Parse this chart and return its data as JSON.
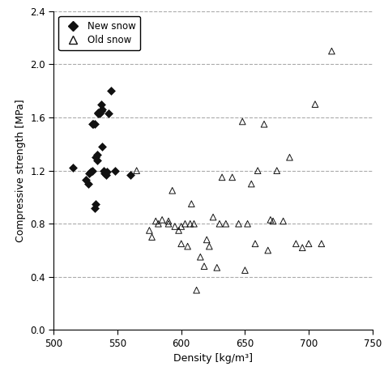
{
  "new_snow_x": [
    515,
    525,
    527,
    528,
    529,
    530,
    530,
    531,
    532,
    532,
    533,
    533,
    534,
    534,
    535,
    535,
    536,
    537,
    537,
    538,
    538,
    539,
    540,
    541,
    542,
    543,
    545,
    548,
    560
  ],
  "new_snow_y": [
    1.22,
    1.13,
    1.1,
    1.18,
    1.19,
    1.2,
    1.55,
    1.55,
    1.55,
    0.92,
    1.3,
    0.95,
    1.28,
    1.32,
    1.63,
    1.64,
    1.63,
    1.65,
    1.7,
    1.66,
    1.38,
    1.2,
    1.18,
    1.17,
    1.19,
    1.63,
    1.8,
    1.2,
    1.17
  ],
  "old_snow_x": [
    565,
    575,
    577,
    580,
    582,
    585,
    590,
    590,
    593,
    595,
    598,
    600,
    600,
    603,
    605,
    607,
    608,
    610,
    612,
    615,
    618,
    620,
    622,
    625,
    628,
    630,
    632,
    635,
    640,
    645,
    648,
    650,
    652,
    655,
    658,
    660,
    665,
    668,
    670,
    672,
    675,
    680,
    685,
    690,
    695,
    700,
    705,
    710,
    718
  ],
  "old_snow_y": [
    1.2,
    0.75,
    0.7,
    0.82,
    0.8,
    0.83,
    0.82,
    0.8,
    1.05,
    0.78,
    0.75,
    0.65,
    0.78,
    0.8,
    0.63,
    0.8,
    0.95,
    0.8,
    0.3,
    0.55,
    0.48,
    0.68,
    0.63,
    0.85,
    0.47,
    0.8,
    1.15,
    0.8,
    1.15,
    0.8,
    1.57,
    0.45,
    0.8,
    1.1,
    0.65,
    1.2,
    1.55,
    0.6,
    0.83,
    0.82,
    1.2,
    0.82,
    1.3,
    0.65,
    0.62,
    0.65,
    1.7,
    0.65,
    2.1
  ],
  "xlim": [
    500,
    750
  ],
  "ylim": [
    0,
    2.4
  ],
  "xlabel": "Density [kg/m³]",
  "ylabel": "Compressive strength [MPa]",
  "xticks": [
    500,
    550,
    600,
    650,
    700,
    750
  ],
  "yticks": [
    0,
    0.4,
    0.8,
    1.2,
    1.6,
    2.0,
    2.4
  ],
  "hgrid_values": [
    0.4,
    0.8,
    1.2,
    1.6,
    2.0,
    2.4
  ],
  "legend_new": "New snow",
  "legend_old": "Old snow",
  "bg_color": "#ffffff",
  "grid_color": "#aaaaaa",
  "marker_color": "#111111",
  "figwidth": 4.74,
  "figheight": 4.63,
  "dpi": 100
}
